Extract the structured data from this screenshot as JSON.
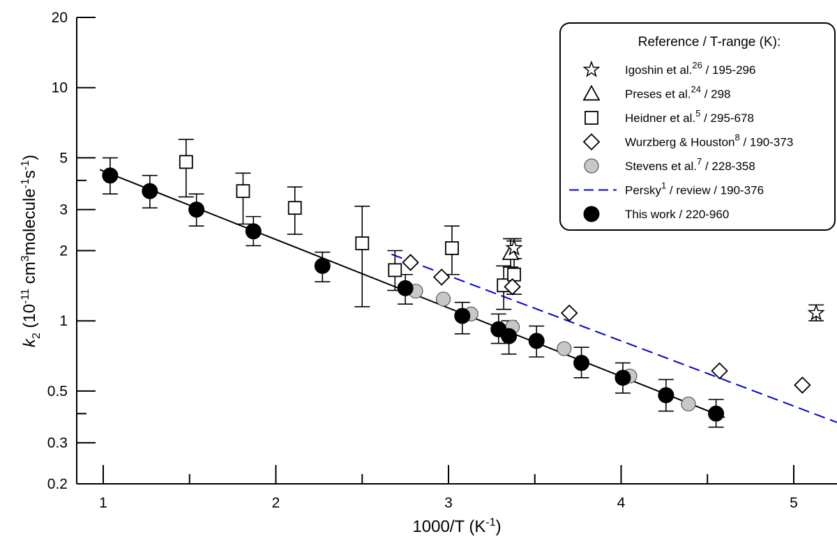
{
  "chart_data": {
    "type": "scatter",
    "xlabel_base": "1000/T (K",
    "xlabel_sup": "-1",
    "xlabel_end": ")",
    "ylabel_var": "k",
    "ylabel_sub": "2",
    "ylabel_pre": " (10",
    "ylabel_sup1": "-11",
    "ylabel_mid1": " cm",
    "ylabel_sup2": "3",
    "ylabel_mid2": "molecule",
    "ylabel_sup3": "-1",
    "ylabel_mid3": "s",
    "ylabel_sup4": "-1",
    "ylabel_end": ")",
    "xlim": [
      0.85,
      5.25
    ],
    "ylim": [
      0.2,
      20
    ],
    "yscale": "log",
    "x_ticks": [
      1,
      2,
      3,
      4,
      5
    ],
    "x_tick_labels": [
      "1",
      "2",
      "3",
      "4",
      "5"
    ],
    "x_minor_ticks": [
      1.5,
      2.5,
      3.5,
      4.5
    ],
    "y_major_ticks": [
      0.2,
      0.3,
      0.5,
      1,
      2,
      3,
      5,
      10,
      20
    ],
    "y_tick_labels": [
      "0.2",
      "0.3",
      "0.5",
      "1",
      "2",
      "3",
      "5",
      "10",
      "20"
    ],
    "y_minor_ticks": [
      0.4,
      4
    ],
    "legend_position": "top-right",
    "legend_title": "Reference / T-range (K):",
    "legend": [
      {
        "marker": "star",
        "name": "Igoshin et al.",
        "sup": "26",
        "range": " / 195-296"
      },
      {
        "marker": "triangle",
        "name": "Preses et al.",
        "sup": "24",
        "range": " / 298"
      },
      {
        "marker": "square",
        "name": "Heidner et al.",
        "sup": "5",
        "range": " / 295-678"
      },
      {
        "marker": "diamond",
        "name": "Wurzberg & Houston",
        "sup": "8",
        "range": " / 190-373"
      },
      {
        "marker": "grey-circle",
        "name": "Stevens et al.",
        "sup": "7",
        "range": " / 228-358"
      },
      {
        "marker": "dashed-line",
        "name": "Persky",
        "sup": "1",
        "range": " / review / 190-376"
      },
      {
        "marker": "black-circle",
        "name": "This work",
        "sup": "",
        "range": " / 220-960"
      }
    ],
    "series": [
      {
        "name": "This work",
        "marker": "black-circle",
        "points": [
          {
            "x": 1.04,
            "y": 4.2,
            "lo": 3.5,
            "hi": 5.0
          },
          {
            "x": 1.27,
            "y": 3.6,
            "lo": 3.05,
            "hi": 4.2
          },
          {
            "x": 1.54,
            "y": 3.0,
            "lo": 2.55,
            "hi": 3.5
          },
          {
            "x": 1.87,
            "y": 2.42,
            "lo": 2.1,
            "hi": 2.8
          },
          {
            "x": 2.27,
            "y": 1.72,
            "lo": 1.47,
            "hi": 1.97
          },
          {
            "x": 2.75,
            "y": 1.38,
            "lo": 1.18,
            "hi": 1.58
          },
          {
            "x": 3.08,
            "y": 1.05,
            "lo": 0.88,
            "hi": 1.2
          },
          {
            "x": 3.29,
            "y": 0.92,
            "lo": 0.8,
            "hi": 1.07
          },
          {
            "x": 3.35,
            "y": 0.86,
            "lo": 0.72,
            "hi": 1.0
          },
          {
            "x": 3.51,
            "y": 0.82,
            "lo": 0.7,
            "hi": 0.95
          },
          {
            "x": 3.77,
            "y": 0.66,
            "lo": 0.57,
            "hi": 0.77
          },
          {
            "x": 4.01,
            "y": 0.57,
            "lo": 0.49,
            "hi": 0.66
          },
          {
            "x": 4.26,
            "y": 0.48,
            "lo": 0.41,
            "hi": 0.56
          },
          {
            "x": 4.55,
            "y": 0.4,
            "lo": 0.35,
            "hi": 0.46
          }
        ]
      },
      {
        "name": "Stevens et al.",
        "marker": "grey-circle",
        "points": [
          {
            "x": 2.81,
            "y": 1.34
          },
          {
            "x": 2.97,
            "y": 1.24
          },
          {
            "x": 3.13,
            "y": 1.07
          },
          {
            "x": 3.37,
            "y": 0.94
          },
          {
            "x": 3.67,
            "y": 0.76
          },
          {
            "x": 4.05,
            "y": 0.58
          },
          {
            "x": 4.39,
            "y": 0.44
          }
        ]
      },
      {
        "name": "Heidner et al.",
        "marker": "square",
        "points": [
          {
            "x": 1.48,
            "y": 4.8,
            "lo": 3.4,
            "hi": 6.0
          },
          {
            "x": 1.81,
            "y": 3.6,
            "lo": 2.6,
            "hi": 4.3
          },
          {
            "x": 2.11,
            "y": 3.05,
            "lo": 2.35,
            "hi": 3.75
          },
          {
            "x": 2.5,
            "y": 2.15,
            "lo": 1.15,
            "hi": 3.1
          },
          {
            "x": 2.69,
            "y": 1.65,
            "lo": 1.35,
            "hi": 2.0
          },
          {
            "x": 3.02,
            "y": 2.05,
            "lo": 1.58,
            "hi": 2.55
          },
          {
            "x": 3.32,
            "y": 1.42,
            "lo": 1.12,
            "hi": 1.72
          },
          {
            "x": 3.38,
            "y": 1.58,
            "lo": 1.3,
            "hi": 2.2
          }
        ]
      },
      {
        "name": "Wurzberg & Houston",
        "marker": "diamond",
        "points": [
          {
            "x": 2.78,
            "y": 1.78
          },
          {
            "x": 2.96,
            "y": 1.54
          },
          {
            "x": 3.37,
            "y": 1.4
          },
          {
            "x": 3.7,
            "y": 1.08
          },
          {
            "x": 4.57,
            "y": 0.61
          },
          {
            "x": 5.05,
            "y": 0.53
          }
        ]
      },
      {
        "name": "Preses et al.",
        "marker": "triangle",
        "points": [
          {
            "x": 3.36,
            "y": 1.95,
            "lo": 1.7,
            "hi": 2.25
          }
        ]
      },
      {
        "name": "Igoshin et al.",
        "marker": "star",
        "points": [
          {
            "x": 3.38,
            "y": 2.05,
            "lo": 1.85,
            "hi": 2.25
          },
          {
            "x": 5.13,
            "y": 1.08,
            "lo": 1.0,
            "hi": 1.17
          }
        ]
      }
    ],
    "fits": [
      {
        "name": "This work",
        "style": "solid",
        "color": "#000000",
        "x": [
          0.98,
          4.6
        ],
        "y": [
          4.45,
          0.385
        ]
      },
      {
        "name": "Persky",
        "style": "dashed",
        "color": "#0000cc",
        "x": [
          2.67,
          5.25
        ],
        "y": [
          1.93,
          0.367
        ]
      }
    ]
  }
}
